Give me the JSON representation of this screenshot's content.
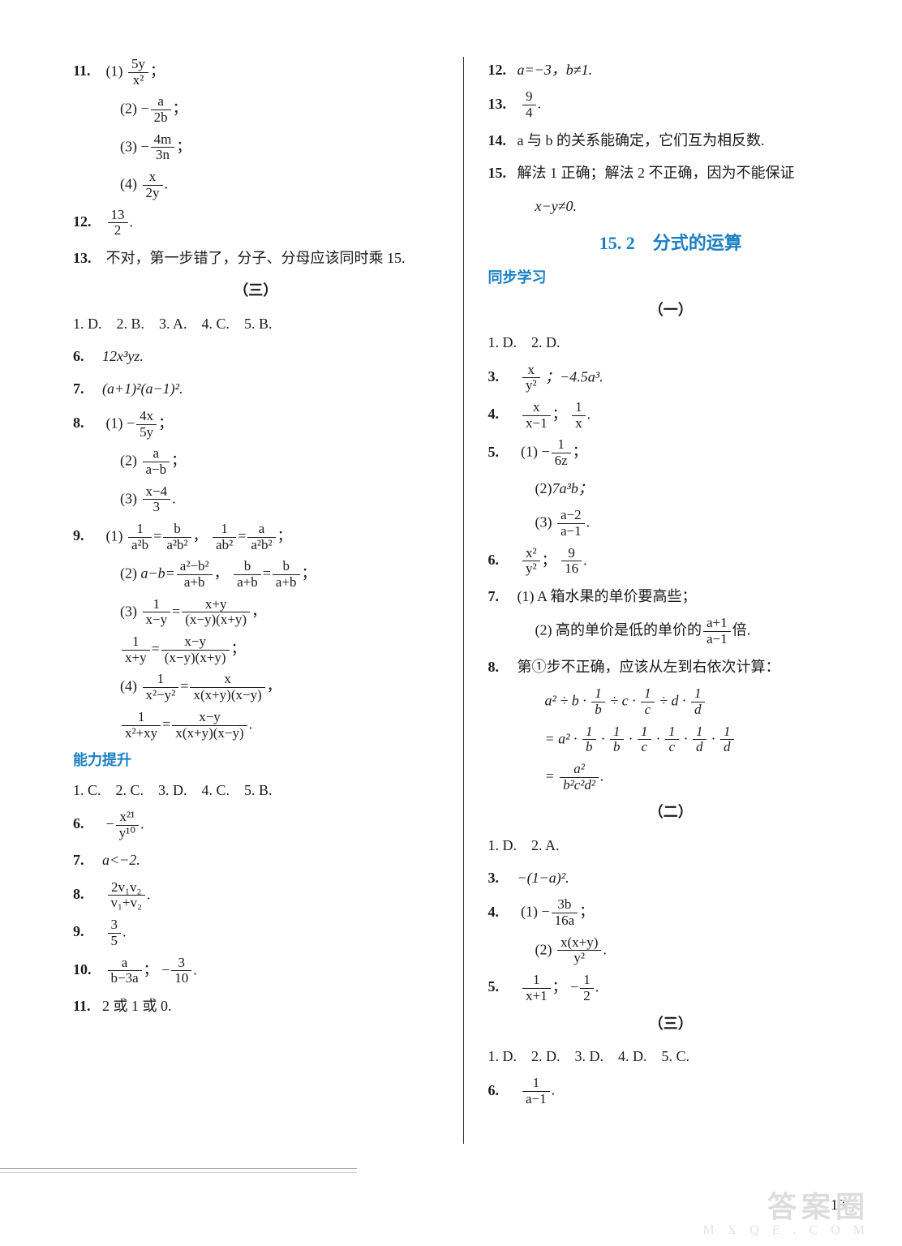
{
  "page_number": "13",
  "watermark_top": "答案圈",
  "watermark_bottom": "M X Q E . C O M",
  "left": {
    "l11_label": "11.",
    "l11_1": "(1)",
    "l11_2": "(2)",
    "l11_3": "(3)",
    "l11_4": "(4)",
    "l11_1_num": "5y",
    "l11_1_den": "x²",
    "l11_2_num": "a",
    "l11_2_den": "2b",
    "neg": "−",
    "l11_3_num": "4m",
    "l11_3_den": "3n",
    "l11_4_num": "x",
    "l11_4_den": "2y",
    "l12_label": "12.",
    "l12_num": "13",
    "l12_den": "2",
    "l13_label": "13.",
    "l13_text": "不对，第一步错了，分子、分母应该同时乘 15.",
    "section3": "（三）",
    "mc_row": "1. D.　2. B.　3. A.　4. C.　5. B.",
    "l6_label": "6.",
    "l6_text": "12x³yz.",
    "l7_label": "7.",
    "l7_text": "(a+1)²(a−1)².",
    "l8_label": "8.",
    "l8_1": "(1)",
    "l8_1_num": "4x",
    "l8_1_den": "5y",
    "l8_2": "(2)",
    "l8_2_num": "a",
    "l8_2_den": "a−b",
    "l8_3": "(3)",
    "l8_3_num": "x−4",
    "l8_3_den": "3",
    "l9_label": "9.",
    "l9_1": "(1)",
    "l9_1a_num": "1",
    "l9_1a_den": "a²b",
    "l9_1b_num": "b",
    "l9_1b_den": "a²b²",
    "l9_1c_num": "1",
    "l9_1c_den": "ab²",
    "l9_1d_num": "a",
    "l9_1d_den": "a²b²",
    "l9_2": "(2)",
    "l9_2a": "a−b=",
    "l9_2a_num": "a²−b²",
    "l9_2a_den": "a+b",
    "l9_2b_num": "b",
    "l9_2b_den": "a+b",
    "l9_2c_num": "b",
    "l9_2c_den": "a+b",
    "l9_3": "(3)",
    "l9_3a_num": "1",
    "l9_3a_den": "x−y",
    "l9_3b_num": "x+y",
    "l9_3b_den": "(x−y)(x+y)",
    "l9_3c_num": "1",
    "l9_3c_den": "x+y",
    "l9_3d_num": "x−y",
    "l9_3d_den": "(x−y)(x+y)",
    "l9_4": "(4)",
    "l9_4a_num": "1",
    "l9_4a_den": "x²−y²",
    "l9_4b_num": "x",
    "l9_4b_den": "x(x+y)(x−y)",
    "l9_4c_num": "1",
    "l9_4c_den": "x²+xy",
    "l9_4d_num": "x−y",
    "l9_4d_den": "x(x+y)(x−y)",
    "ability_title": "能力提升",
    "ab_mc": "1. C.　2. C.　3. D.　4. C.　5. B.",
    "ab6_label": "6.",
    "ab6_num": "x²¹",
    "ab6_den": "y¹⁰",
    "ab7_label": "7.",
    "ab7_text": "a<−2.",
    "ab8_label": "8.",
    "ab8_num": "2v₁v₂",
    "ab8_den": "v₁+v₂",
    "ab9_label": "9.",
    "ab9_num": "3",
    "ab9_den": "5",
    "ab10_label": "10.",
    "ab10a_num": "a",
    "ab10a_den": "b−3a",
    "ab10b_num": "3",
    "ab10b_den": "10",
    "ab11_label": "11.",
    "ab11_text": "2 或 1 或 0."
  },
  "right": {
    "r12_label": "12.",
    "r12_text": "a=−3，b≠1.",
    "r13_label": "13.",
    "r13_num": "9",
    "r13_den": "4",
    "r14_label": "14.",
    "r14_text": "a 与 b 的关系能确定，它们互为相反数.",
    "r15_label": "15.",
    "r15_text": "解法 1 正确；解法 2 不正确，因为不能保证",
    "r15_text2": "x−y≠0.",
    "sec_title": "15. 2　分式的运算",
    "sync": "同步学习",
    "part1": "（一）",
    "p1_mc": "1. D.　2. D.",
    "p1_3_label": "3.",
    "p1_3_num": "x",
    "p1_3_den": "y²",
    "p1_3_tail": "；−4.5a³.",
    "p1_4_label": "4.",
    "p1_4a_num": "x",
    "p1_4a_den": "x−1",
    "p1_4b_num": "1",
    "p1_4b_den": "x",
    "p1_5_label": "5.",
    "p1_5_1": "(1)",
    "p1_5_1_num": "1",
    "p1_5_1_den": "6z",
    "p1_5_2": "(2)",
    "p1_5_2_text": "7a³b；",
    "p1_5_3": "(3)",
    "p1_5_3_num": "a−2",
    "p1_5_3_den": "a−1",
    "p1_6_label": "6.",
    "p1_6a_num": "x²",
    "p1_6a_den": "y²",
    "p1_6b_num": "9",
    "p1_6b_den": "16",
    "p1_7_label": "7.",
    "p1_7_1": "(1)  A 箱水果的单价要高些；",
    "p1_7_2": "(2)  高的单价是低的单价的",
    "p1_7_2_num": "a+1",
    "p1_7_2_den": "a−1",
    "p1_7_2_tail": "倍.",
    "p1_8_label": "8.",
    "p1_8_text": "第①步不正确，应该从左到右依次计算：",
    "p1_8_line1": "a² ÷ b · ",
    "p1_8_l1a_num": "1",
    "p1_8_l1a_den": "b",
    "p1_8_l1_mid": " ÷ c · ",
    "p1_8_l1b_num": "1",
    "p1_8_l1b_den": "c",
    "p1_8_l1_mid2": " ÷ d · ",
    "p1_8_l1c_num": "1",
    "p1_8_l1c_den": "d",
    "p1_8_line2": "= a² · ",
    "p1_8_l2a_num": "1",
    "p1_8_l2a_den": "b",
    "p1_8_l2b_num": "1",
    "p1_8_l2b_den": "b",
    "p1_8_l2c_num": "1",
    "p1_8_l2c_den": "c",
    "p1_8_l2d_num": "1",
    "p1_8_l2d_den": "c",
    "p1_8_l2e_num": "1",
    "p1_8_l2e_den": "d",
    "p1_8_l2f_num": "1",
    "p1_8_l2f_den": "d",
    "p1_8_line3_num": "a²",
    "p1_8_line3_den": "b²c²d²",
    "part2": "（二）",
    "p2_mc": "1. D.　2. A.",
    "p2_3_label": "3.",
    "p2_3_text": "−(1−a)².",
    "p2_4_label": "4.",
    "p2_4_1": "(1)",
    "p2_4_1_num": "3b",
    "p2_4_1_den": "16a",
    "p2_4_2": "(2)",
    "p2_4_2_num": "x(x+y)",
    "p2_4_2_den": "y²",
    "p2_5_label": "5.",
    "p2_5a_num": "1",
    "p2_5a_den": "x+1",
    "p2_5b_num": "1",
    "p2_5b_den": "2",
    "part3": "（三）",
    "p3_mc": "1. D.　2. D.　3. D.　4. D.　5. C.",
    "p3_6_label": "6.",
    "p3_6_num": "1",
    "p3_6_den": "a−1"
  }
}
